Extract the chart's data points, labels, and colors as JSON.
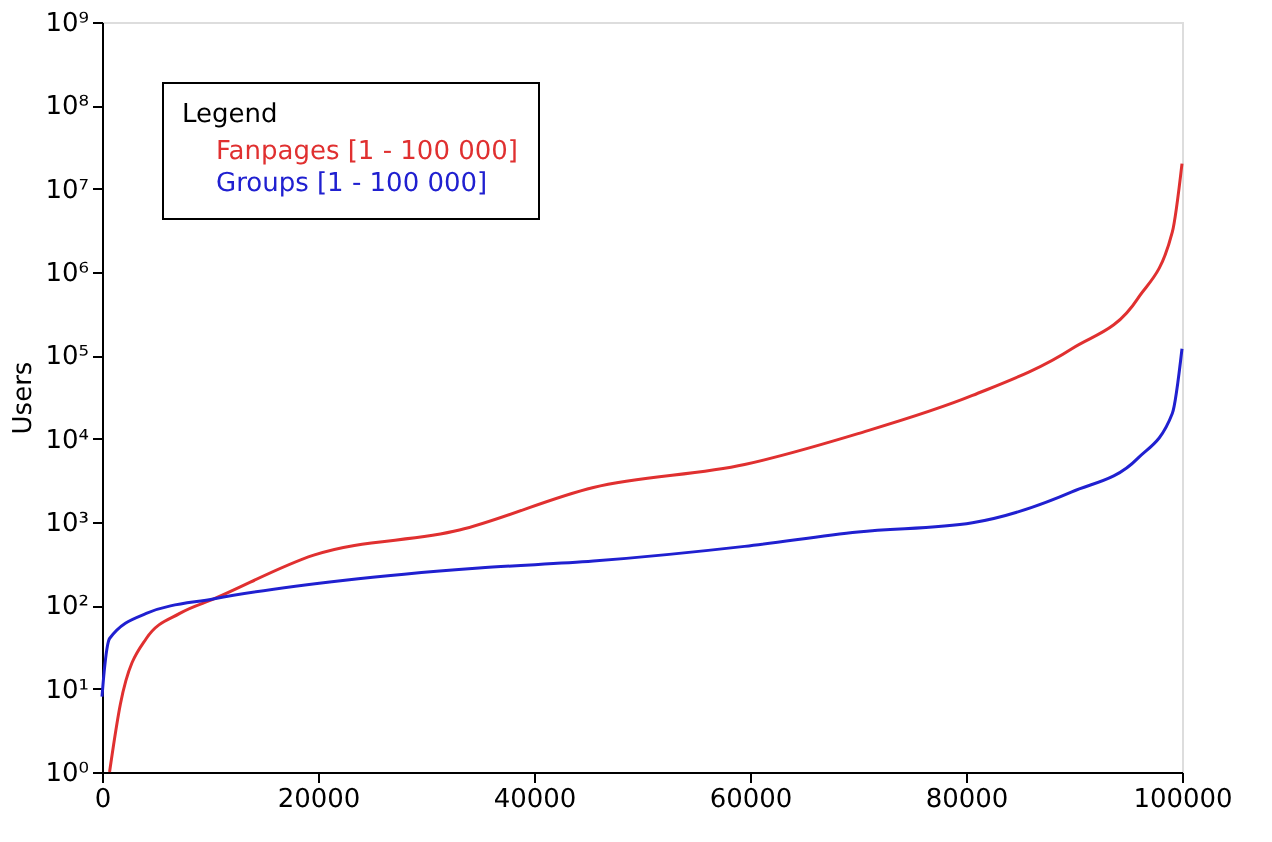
{
  "chart_data": {
    "type": "line",
    "ylabel": "Users",
    "legend_title": "Legend",
    "legend": "top left",
    "log": "y",
    "grid": false,
    "marker": "none",
    "line_style": "solid",
    "xlim": [
      0,
      100000
    ],
    "xticks": [
      0,
      20000,
      40000,
      60000,
      80000,
      100000
    ],
    "ylim": [
      1,
      1000000000
    ],
    "yticks": [
      {
        "value": 1,
        "label": "10⁰"
      },
      {
        "value": 10,
        "label": "10¹"
      },
      {
        "value": 100,
        "label": "10²"
      },
      {
        "value": 1000,
        "label": "10³"
      },
      {
        "value": 10000,
        "label": "10⁴"
      },
      {
        "value": 100000,
        "label": "10⁵"
      },
      {
        "value": 1000000,
        "label": "10⁶"
      },
      {
        "value": 10000000,
        "label": "10⁷"
      },
      {
        "value": 100000000,
        "label": "10⁸"
      },
      {
        "value": 1000000000,
        "label": "10⁹"
      }
    ],
    "series": [
      {
        "name": "Fanpages [1 - 100 000]",
        "color": "#e03030",
        "x": [
          700,
          1700,
          4100,
          7200,
          10400,
          19600,
          33100,
          45500,
          59500,
          70000,
          80600,
          89800,
          95900,
          99100,
          100000
        ],
        "values": [
          1,
          6.5,
          40,
          80,
          120,
          400,
          800,
          2600,
          4900,
          11500,
          33000,
          120000,
          480000,
          3000000,
          20000000
        ]
      },
      {
        "name": "Groups [1 - 100 000]",
        "color": "#2020d0",
        "x": [
          0,
          200,
          700,
          4100,
          10400,
          22500,
          34900,
          45500,
          59500,
          70000,
          80600,
          89800,
          95900,
          99100,
          100000
        ],
        "values": [
          8,
          16,
          40,
          80,
          120,
          200,
          280,
          340,
          510,
          760,
          980,
          2300,
          5800,
          20000,
          120000
        ]
      }
    ]
  }
}
